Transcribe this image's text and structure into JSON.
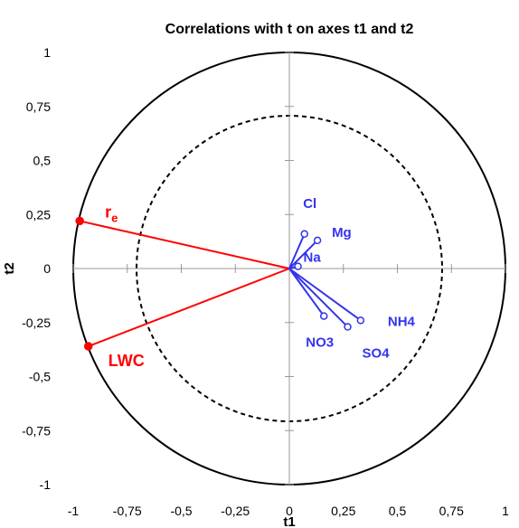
{
  "chart_data": {
    "type": "scatter",
    "title": "Correlations with t on axes t1 and t2",
    "xlabel": "t1",
    "ylabel": "t2",
    "xlim": [
      -1,
      1
    ],
    "ylim": [
      -1,
      1
    ],
    "xticks": [
      "-1",
      "-0,75",
      "-0,5",
      "-0,25",
      "0",
      "0,25",
      "0,5",
      "0,75",
      "1"
    ],
    "yticks": [
      "1",
      "0,75",
      "0,5",
      "0,25",
      "0",
      "-0,25",
      "-0,5",
      "-0,75",
      "-1"
    ],
    "circles": [
      {
        "radius": 1.0,
        "style": "solid"
      },
      {
        "radius": 0.707,
        "style": "dashed"
      }
    ],
    "series": [
      {
        "group": "supplementary",
        "color": "#ff0000",
        "marker": "filled-circle",
        "points": [
          {
            "label": "r",
            "label_subscript": "e",
            "x": -0.97,
            "y": 0.22
          },
          {
            "label": "LWC",
            "x": -0.93,
            "y": -0.36
          }
        ]
      },
      {
        "group": "active",
        "color": "#3333ee",
        "marker": "open-circle",
        "points": [
          {
            "label": "Cl",
            "x": 0.07,
            "y": 0.16
          },
          {
            "label": "Mg",
            "x": 0.13,
            "y": 0.13
          },
          {
            "label": "Na",
            "x": 0.04,
            "y": 0.01
          },
          {
            "label": "NH4",
            "x": 0.33,
            "y": -0.24
          },
          {
            "label": "SO4",
            "x": 0.27,
            "y": -0.27
          },
          {
            "label": "NO3",
            "x": 0.16,
            "y": -0.22
          }
        ]
      }
    ]
  }
}
